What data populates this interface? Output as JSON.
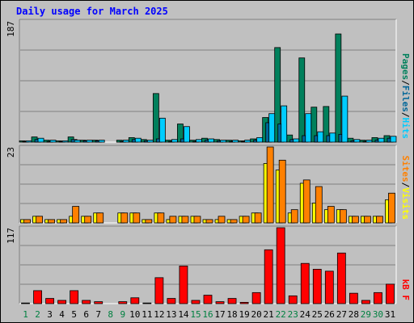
{
  "colors": {
    "background": "#c0c0c0",
    "plot_background": "#c0c0c0",
    "grid": "#808080",
    "title": "#0000ff",
    "hits": "#00ccff",
    "files": "#006699",
    "pages": "#00805c",
    "visits": "#ffff00",
    "sites": "#ff8000",
    "kbytes": "#ff0000",
    "weekend_label": "#008040",
    "weekday_label": "#000000"
  },
  "chart_data": {
    "type": "bar",
    "title": "Daily usage for March 2025",
    "x": [
      1,
      2,
      3,
      4,
      5,
      6,
      7,
      8,
      9,
      10,
      11,
      12,
      13,
      14,
      15,
      16,
      17,
      18,
      19,
      20,
      21,
      22,
      23,
      24,
      25,
      26,
      27,
      28,
      29,
      30,
      31
    ],
    "weekend_days": [
      1,
      2,
      8,
      9,
      15,
      16,
      22,
      23,
      29,
      30
    ],
    "panels": [
      {
        "name": "hits-files-pages",
        "ymax_label": "187",
        "ymax": 187,
        "legend": [
          {
            "text": "Pages",
            "color_key": "pages"
          },
          {
            "text": "/",
            "color_key": "weekday_label"
          },
          {
            "text": "Files",
            "color_key": "files"
          },
          {
            "text": "/",
            "color_key": "weekday_label"
          },
          {
            "text": "Hits",
            "color_key": "hits"
          }
        ],
        "series": [
          {
            "name": "Pages",
            "color_key": "pages",
            "values": [
              2,
              8,
              3,
              2,
              8,
              3,
              3,
              0,
              3,
              7,
              4,
              75,
              3,
              28,
              3,
              6,
              4,
              3,
              2,
              5,
              38,
              146,
              11,
              130,
              54,
              55,
              167,
              6,
              3,
              7,
              10
            ]
          },
          {
            "name": "Files",
            "color_key": "files",
            "values": [
              1,
              4,
              1,
              1,
              4,
              2,
              2,
              0,
              1,
              4,
              2,
              5,
              1,
              5,
              1,
              3,
              2,
              1,
              1,
              3,
              30,
              28,
              4,
              10,
              10,
              10,
              12,
              2,
              1,
              3,
              6
            ]
          },
          {
            "name": "Hits",
            "color_key": "hits",
            "values": [
              2,
              6,
              3,
              2,
              3,
              3,
              3,
              0,
              3,
              6,
              3,
              37,
              4,
              24,
              4,
              5,
              3,
              3,
              3,
              7,
              44,
              56,
              5,
              44,
              16,
              14,
              71,
              4,
              3,
              6,
              9
            ]
          }
        ]
      },
      {
        "name": "visits-sites",
        "ymax_label": "23",
        "ymax": 23,
        "legend": [
          {
            "text": "Sites",
            "color_key": "sites"
          },
          {
            "text": "/",
            "color_key": "weekday_label"
          },
          {
            "text": "Visits",
            "color_key": "visits"
          }
        ],
        "series": [
          {
            "name": "Visits",
            "color_key": "visits",
            "values": [
              1,
              2,
              1,
              1,
              2,
              2,
              3,
              0,
              3,
              3,
              1,
              3,
              1,
              2,
              2,
              1,
              1,
              1,
              2,
              3,
              18,
              16,
              3,
              12,
              6,
              4,
              4,
              2,
              2,
              2,
              7
            ]
          },
          {
            "name": "Sites",
            "color_key": "sites",
            "values": [
              1,
              2,
              1,
              1,
              5,
              2,
              3,
              0,
              3,
              3,
              1,
              3,
              2,
              2,
              2,
              1,
              2,
              1,
              2,
              3,
              23,
              19,
              4,
              13,
              11,
              5,
              4,
              2,
              2,
              2,
              9
            ]
          }
        ]
      },
      {
        "name": "kbytes",
        "ymax_label": "117",
        "ymax": 117,
        "legend": [
          {
            "text": "kB F",
            "color_key": "kbytes"
          }
        ],
        "series": [
          {
            "name": "kB F",
            "color_key": "kbytes",
            "values": [
              1,
              20,
              8,
              5,
              20,
              5,
              3,
              0,
              3,
              9,
              1,
              40,
              8,
              58,
              5,
              13,
              3,
              8,
              2,
              17,
              83,
              117,
              12,
              62,
              53,
              50,
              78,
              16,
              5,
              17,
              30
            ]
          }
        ]
      }
    ]
  }
}
